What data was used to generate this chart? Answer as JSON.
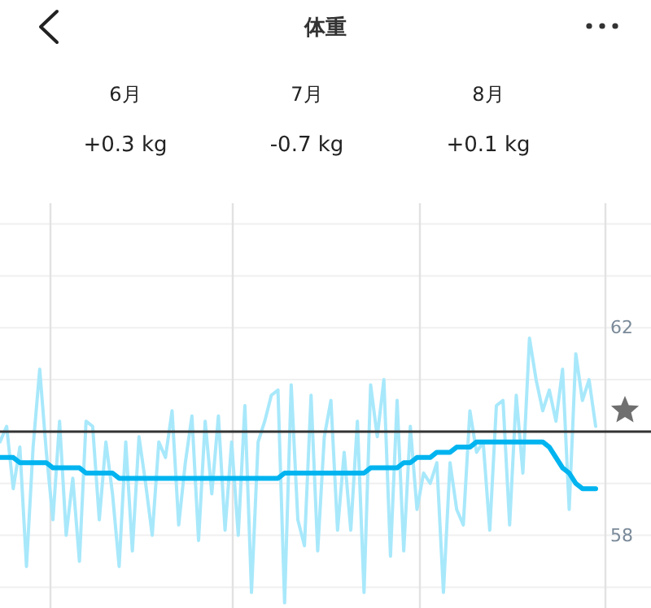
{
  "chart_data": {
    "type": "line",
    "title": "体重",
    "annotations": [
      "6月",
      "+0.3 kg",
      "7月",
      "-0.7 kg",
      "8月",
      "+0.1 kg"
    ],
    "categories": [
      null,
      null,
      null,
      null,
      null,
      null,
      null,
      null,
      null,
      null,
      null,
      null,
      null,
      null,
      null,
      null,
      null,
      null,
      null,
      null,
      null,
      null,
      null,
      null,
      null,
      null,
      null,
      null,
      null,
      null,
      null,
      null,
      null,
      null,
      null,
      null,
      null,
      null,
      null,
      null,
      null,
      null,
      null,
      null,
      null,
      null,
      null,
      null,
      null,
      null,
      null,
      null,
      null,
      null,
      null,
      null,
      null,
      null,
      null,
      null,
      null,
      null,
      null,
      null,
      null,
      null,
      null,
      null,
      null,
      null,
      null,
      null,
      null,
      null,
      null,
      null,
      null,
      null,
      null,
      null,
      null,
      null,
      null,
      null,
      null,
      null,
      null,
      null,
      null,
      null,
      null
    ],
    "ylim": [
      56.6,
      64.4
    ],
    "yticks": [
      {
        "value": 57,
        "label": null
      },
      58,
      {
        "value": 59,
        "label": null
      },
      {
        "value": 60,
        "label": null
      },
      {
        "value": 61,
        "label": null
      },
      62,
      {
        "value": 63,
        "label": null
      },
      {
        "value": 64,
        "label": null
      }
    ],
    "tick_labels": "y",
    "grid": true,
    "ref_lines": [
      {
        "axis": "y",
        "value": 60,
        "color": "#333333"
      }
    ],
    "series": [
      {
        "color": "#a8e8fb",
        "values": [
          59.8,
          60.1,
          58.9,
          59.7,
          57.4,
          59.7,
          61.2,
          59.6,
          58.3,
          60.2,
          58.0,
          59.1,
          57.5,
          60.2,
          60.1,
          58.3,
          59.8,
          58.8,
          57.4,
          59.8,
          57.7,
          59.9,
          59.0,
          58.0,
          59.8,
          59.5,
          60.4,
          58.2,
          59.4,
          60.3,
          57.9,
          60.2,
          58.8,
          60.3,
          58.1,
          59.8,
          58.0,
          60.5,
          56.9,
          59.8,
          60.2,
          60.7,
          60.8,
          56.7,
          60.9,
          58.3,
          57.8,
          60.7,
          57.7,
          59.9,
          60.6,
          58.1,
          59.6,
          58.1,
          60.2,
          56.9,
          60.9,
          59.9,
          61.0,
          57.6,
          60.6,
          57.7,
          60.1,
          58.5,
          59.2,
          59.0,
          59.4,
          56.9,
          59.4,
          58.5,
          58.2,
          60.4,
          59.6,
          59.8,
          58.1,
          60.5,
          60.6,
          58.2,
          60.7,
          59.2,
          61.8,
          61.0,
          60.4,
          60.8,
          60.2,
          61.2,
          58.5,
          61.5,
          60.6,
          61.0,
          60.1
        ]
      },
      {
        "color": "#00b4f0",
        "values": [
          59.5,
          59.5,
          59.5,
          59.4,
          59.4,
          59.4,
          59.4,
          59.4,
          59.3,
          59.3,
          59.3,
          59.3,
          59.3,
          59.2,
          59.2,
          59.2,
          59.2,
          59.2,
          59.1,
          59.1,
          59.1,
          59.1,
          59.1,
          59.1,
          59.1,
          59.1,
          59.1,
          59.1,
          59.1,
          59.1,
          59.1,
          59.1,
          59.1,
          59.1,
          59.1,
          59.1,
          59.1,
          59.1,
          59.1,
          59.1,
          59.1,
          59.1,
          59.1,
          59.2,
          59.2,
          59.2,
          59.2,
          59.2,
          59.2,
          59.2,
          59.2,
          59.2,
          59.2,
          59.2,
          59.2,
          59.2,
          59.3,
          59.3,
          59.3,
          59.3,
          59.3,
          59.4,
          59.4,
          59.5,
          59.5,
          59.5,
          59.6,
          59.6,
          59.6,
          59.7,
          59.7,
          59.7,
          59.8,
          59.8,
          59.8,
          59.8,
          59.8,
          59.8,
          59.8,
          59.8,
          59.8,
          59.8,
          59.8,
          59.7,
          59.5,
          59.3,
          59.2,
          59.0,
          58.9,
          58.9,
          58.9
        ]
      }
    ]
  }
}
